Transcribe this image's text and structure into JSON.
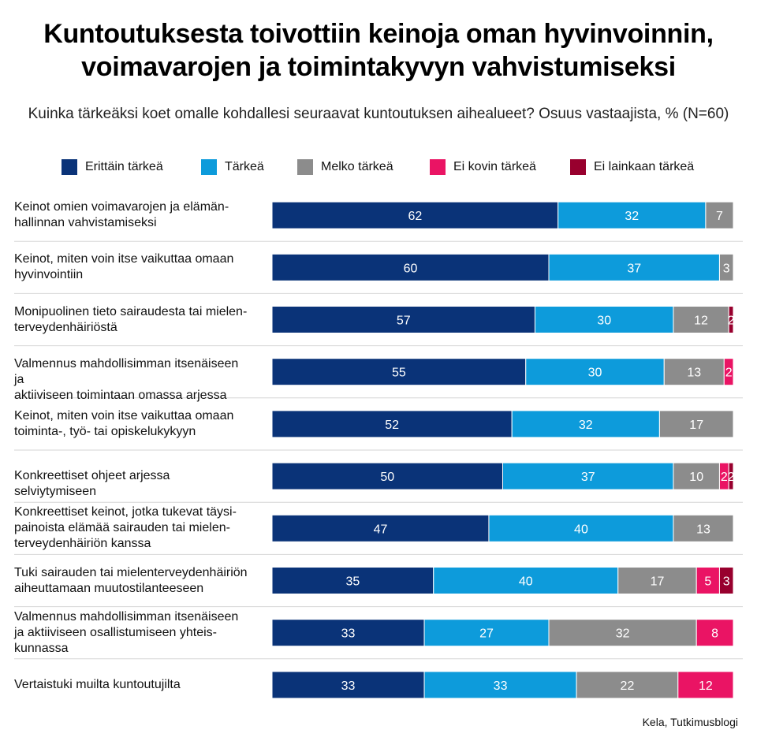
{
  "title_lines": [
    "Kuntoutuksesta toivottiin keinoja oman hyvinvoinnin,",
    "voimavarojen ja toimintakyvyn vahvistumiseksi"
  ],
  "subtitle": "Kuinka tärkeäksi koet omalle kohdallesi seuraavat kuntoutuksen aihealueet? Osuus vastaajista, % (N=60)",
  "source": "Kela, Tutkimusblogi",
  "chart_data": {
    "type": "bar",
    "orientation": "horizontal",
    "stacked": true,
    "legend_position": "top",
    "xlim": [
      0,
      100
    ],
    "categories": [
      [
        "Keinot omien voimavarojen ja elämän-",
        "hallinnan vahvistamiseksi"
      ],
      [
        "Keinot, miten voin itse vaikuttaa omaan",
        "hyvinvointiin"
      ],
      [
        "Monipuolinen tieto sairaudesta tai mielen-",
        "terveydenhäiriöstä"
      ],
      [
        "Valmennus mahdollisimman itsenäiseen ja",
        "aktiiviseen toimintaan omassa arjessa"
      ],
      [
        "Keinot, miten voin itse vaikuttaa omaan",
        "toiminta-, työ- tai opiskelukykyyn"
      ],
      [
        "Konkreettiset ohjeet arjessa selviytymiseen"
      ],
      [
        "Konkreettiset keinot, jotka tukevat täysi-",
        "painoista elämää sairauden tai mielen-",
        "terveydenhäiriön kanssa"
      ],
      [
        "Tuki sairauden tai mielenterveydenhäiriön",
        "aiheuttamaan muutostilanteeseen"
      ],
      [
        "Valmennus mahdollisimman itsenäiseen",
        "ja aktiiviseen osallistumiseen yhteis-",
        "kunnassa"
      ],
      [
        "Vertaistuki muilta kuntoutujilta"
      ]
    ],
    "series": [
      {
        "name": "Erittäin tärkeä",
        "color": "#0a3378",
        "values": [
          62,
          60,
          57,
          55,
          52,
          50,
          47,
          35,
          33,
          33
        ]
      },
      {
        "name": "Tärkeä",
        "color": "#0d9bdb",
        "values": [
          32,
          37,
          30,
          30,
          32,
          37,
          40,
          40,
          27,
          33
        ]
      },
      {
        "name": "Melko tärkeä",
        "color": "#8c8c8c",
        "values": [
          7,
          3,
          12,
          13,
          17,
          10,
          13,
          17,
          32,
          22
        ]
      },
      {
        "name": "Ei kovin tärkeä",
        "color": "#ea1464",
        "values": [
          0,
          0,
          0,
          2,
          0,
          2,
          0,
          5,
          8,
          12
        ]
      },
      {
        "name": "Ei lainkaan tärkeä",
        "color": "#98002e",
        "values": [
          0,
          0,
          2,
          0,
          0,
          2,
          0,
          3,
          0,
          0
        ]
      }
    ]
  }
}
